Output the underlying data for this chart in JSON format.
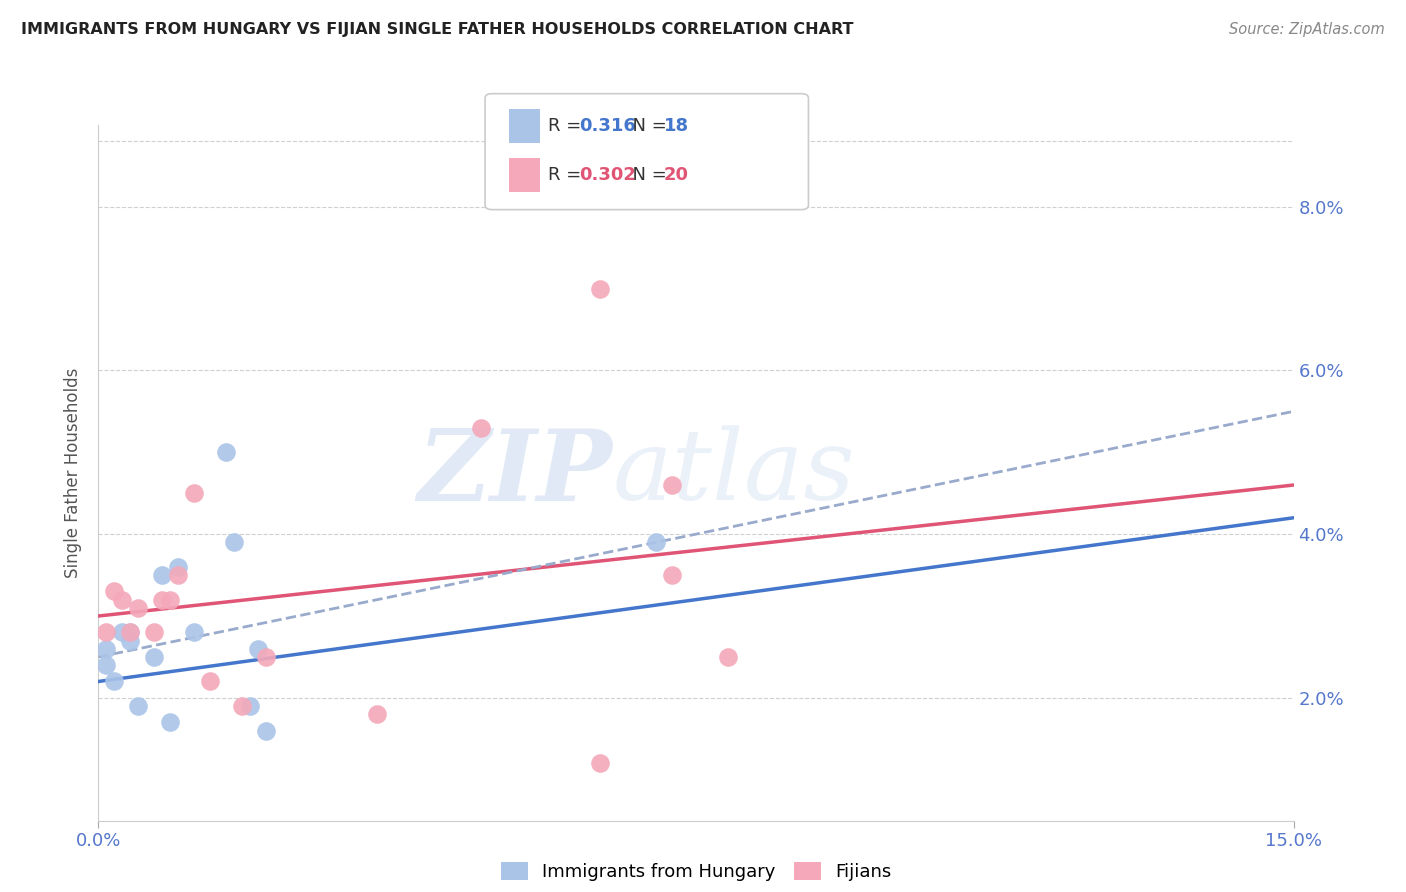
{
  "title": "IMMIGRANTS FROM HUNGARY VS FIJIAN SINGLE FATHER HOUSEHOLDS CORRELATION CHART",
  "source": "Source: ZipAtlas.com",
  "ylabel": "Single Father Households",
  "legend_label1": "Immigrants from Hungary",
  "legend_label2": "Fijians",
  "R1": "0.316",
  "N1": "18",
  "R2": "0.302",
  "N2": "20",
  "xlim": [
    0.0,
    0.15
  ],
  "ylim": [
    0.005,
    0.09
  ],
  "yticks": [
    0.02,
    0.04,
    0.06,
    0.08
  ],
  "ytick_labels": [
    "2.0%",
    "4.0%",
    "6.0%",
    "8.0%"
  ],
  "xticks": [
    0.0,
    0.15
  ],
  "xtick_labels": [
    "0.0%",
    "15.0%"
  ],
  "color_blue": "#aac4e8",
  "color_pink": "#f4a8ba",
  "color_blue_line": "#4477cc",
  "color_pink_line": "#e05575",
  "color_blue_dashed": "#99aacc",
  "watermark_zip": "ZIP",
  "watermark_atlas": "atlas",
  "blue_points": [
    [
      0.001,
      0.026
    ],
    [
      0.002,
      0.022
    ],
    [
      0.003,
      0.028
    ],
    [
      0.004,
      0.027
    ],
    [
      0.004,
      0.028
    ],
    [
      0.005,
      0.019
    ],
    [
      0.007,
      0.025
    ],
    [
      0.008,
      0.035
    ],
    [
      0.009,
      0.017
    ],
    [
      0.01,
      0.036
    ],
    [
      0.012,
      0.028
    ],
    [
      0.016,
      0.05
    ],
    [
      0.017,
      0.039
    ],
    [
      0.019,
      0.019
    ],
    [
      0.02,
      0.026
    ],
    [
      0.021,
      0.016
    ],
    [
      0.07,
      0.039
    ],
    [
      0.001,
      0.024
    ]
  ],
  "pink_points": [
    [
      0.001,
      0.028
    ],
    [
      0.002,
      0.033
    ],
    [
      0.003,
      0.032
    ],
    [
      0.004,
      0.028
    ],
    [
      0.005,
      0.031
    ],
    [
      0.007,
      0.028
    ],
    [
      0.008,
      0.032
    ],
    [
      0.009,
      0.032
    ],
    [
      0.01,
      0.035
    ],
    [
      0.012,
      0.045
    ],
    [
      0.014,
      0.022
    ],
    [
      0.018,
      0.019
    ],
    [
      0.021,
      0.025
    ],
    [
      0.035,
      0.018
    ],
    [
      0.048,
      0.053
    ],
    [
      0.063,
      0.07
    ],
    [
      0.072,
      0.035
    ],
    [
      0.072,
      0.046
    ],
    [
      0.079,
      0.025
    ],
    [
      0.063,
      0.012
    ]
  ],
  "blue_line": [
    [
      0.0,
      0.022
    ],
    [
      0.15,
      0.042
    ]
  ],
  "pink_line": [
    [
      0.0,
      0.03
    ],
    [
      0.15,
      0.046
    ]
  ],
  "blue_dashed_line": [
    [
      0.0,
      0.025
    ],
    [
      0.15,
      0.055
    ]
  ]
}
